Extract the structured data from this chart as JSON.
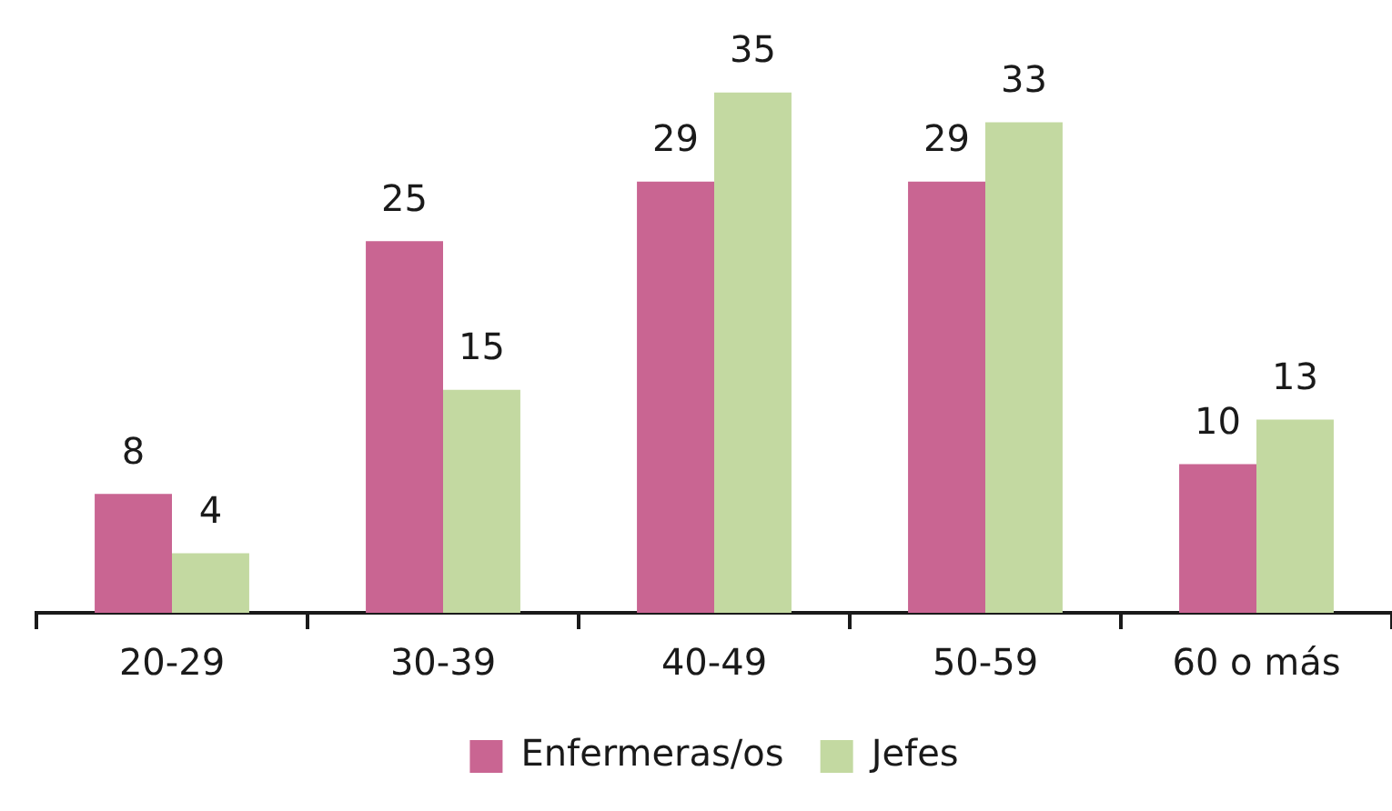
{
  "chart_data": {
    "type": "bar",
    "categories": [
      "20-29",
      "30-39",
      "40-49",
      "50-59",
      "60 o más"
    ],
    "series": [
      {
        "name": "Enfermeras/os",
        "color": "#c96592",
        "values": [
          8,
          25,
          29,
          29,
          10
        ]
      },
      {
        "name": "Jefes",
        "color": "#c3d9a1",
        "values": [
          4,
          15,
          35,
          33,
          13
        ]
      }
    ],
    "data_labels": true,
    "legend": "bottom",
    "tick_labels": "x"
  }
}
